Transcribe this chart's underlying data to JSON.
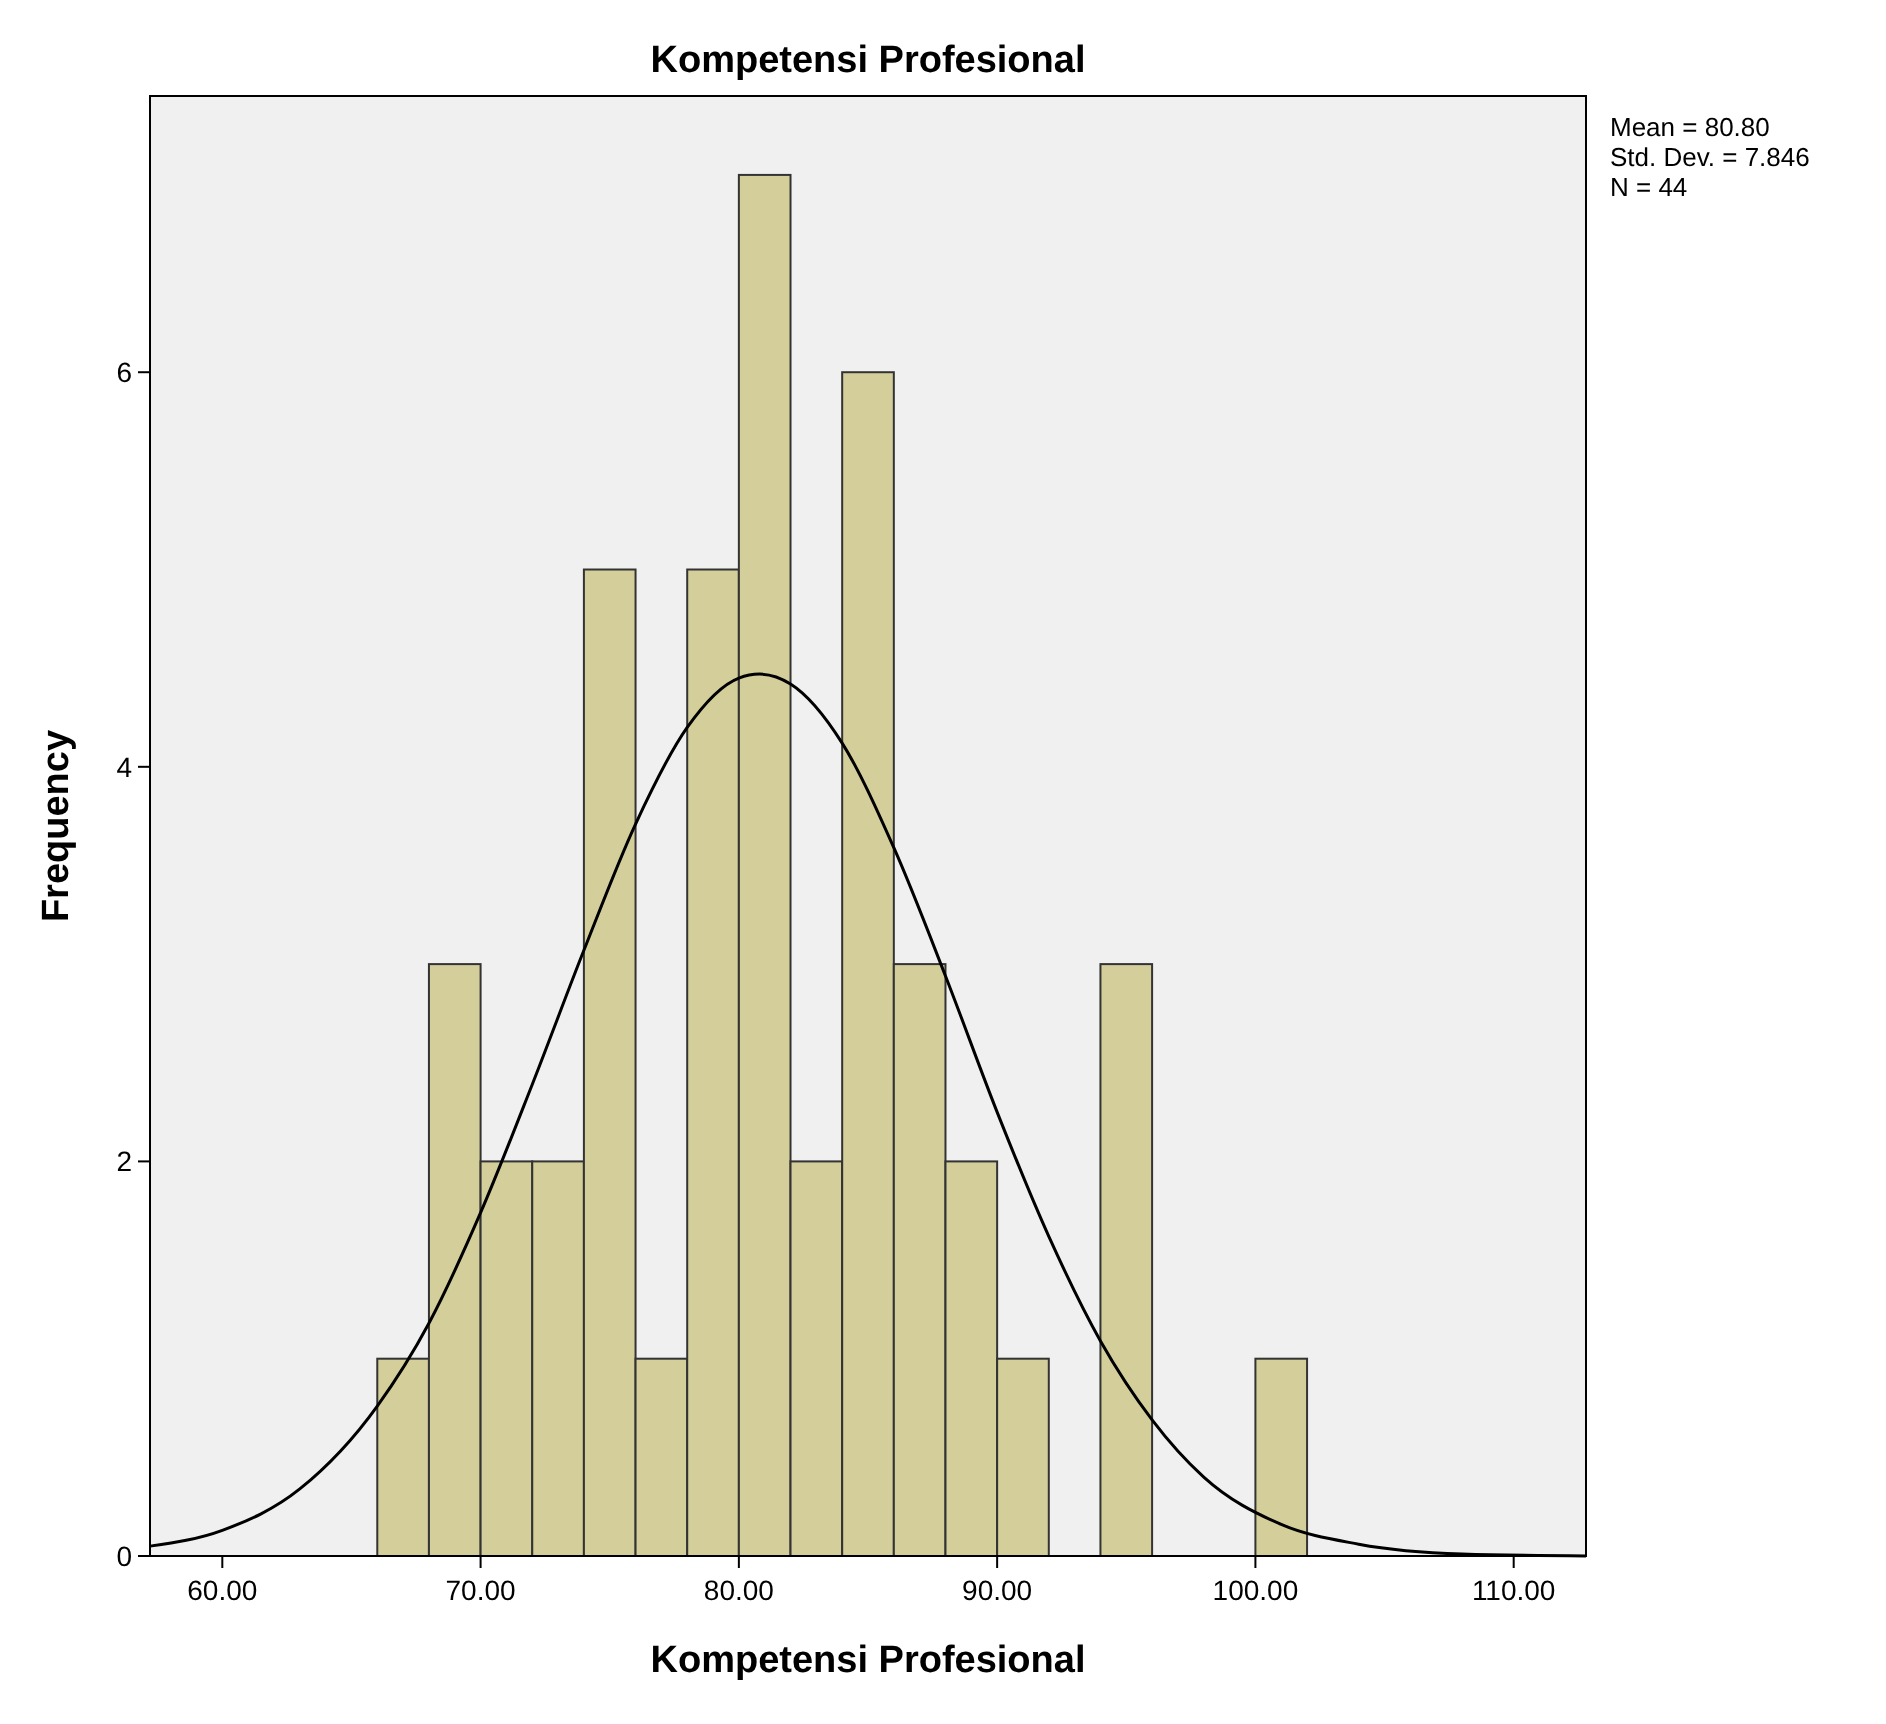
{
  "chart_data": {
    "type": "histogram",
    "title": "Kompetensi Profesional",
    "xlabel": "Kompetensi Profesional",
    "ylabel": "Frequency",
    "bins": [
      66,
      68,
      70,
      72,
      74,
      76,
      78,
      80,
      82,
      84,
      86,
      88,
      90,
      92,
      94,
      96,
      98,
      100,
      102
    ],
    "values": [
      1,
      3,
      2,
      2,
      5,
      1,
      5,
      7,
      2,
      6,
      3,
      2,
      1,
      0,
      3,
      0,
      0,
      1
    ],
    "color": "#d3ce9a",
    "series": [
      {
        "type": "line",
        "color": "#000000",
        "x": [
          57.2,
          60,
          63,
          66,
          68,
          70,
          72,
          74,
          76,
          78,
          80,
          80.8,
          82,
          84,
          86,
          88,
          90,
          92,
          94,
          96,
          98,
          101,
          104,
          108,
          112.8
        ],
        "values": [
          0.05,
          0.13,
          0.34,
          0.76,
          1.18,
          1.74,
          2.39,
          3.07,
          3.71,
          4.2,
          4.45,
          4.47,
          4.42,
          4.12,
          3.59,
          2.94,
          2.25,
          1.62,
          1.09,
          0.69,
          0.4,
          0.16,
          0.06,
          0.01,
          0
        ]
      }
    ],
    "xlim": [
      57.2,
      112.8
    ],
    "xticks": [
      {
        "value": 60,
        "label": "60.00"
      },
      {
        "value": 70,
        "label": "70.00"
      },
      {
        "value": 80,
        "label": "80.00"
      },
      {
        "value": 90,
        "label": "90.00"
      },
      {
        "value": 100,
        "label": "100.00"
      },
      {
        "value": 110,
        "label": "110.00"
      }
    ],
    "ylim": [
      0,
      7.4
    ],
    "yticks": [
      0,
      2,
      4,
      6
    ],
    "annotations": [
      "Mean = 80.80",
      "Std. Dev. = 7.846",
      "N = 44"
    ],
    "grid": false
  }
}
